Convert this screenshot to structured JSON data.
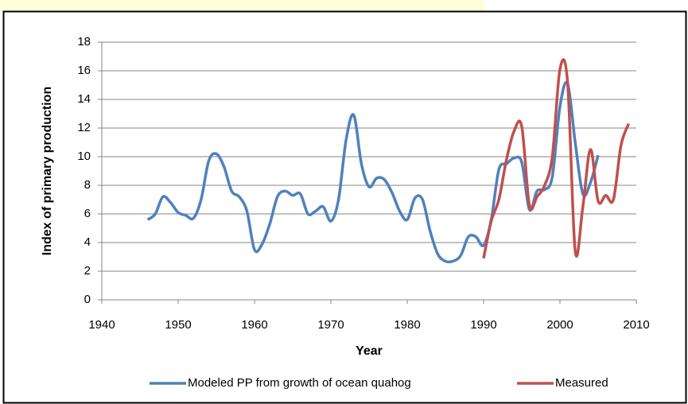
{
  "chart_data": {
    "type": "line",
    "xlabel": "Year",
    "ylabel": "Index of primary production",
    "x": [
      1946,
      1947,
      1948,
      1949,
      1950,
      1951,
      1952,
      1953,
      1954,
      1955,
      1956,
      1957,
      1958,
      1959,
      1960,
      1961,
      1962,
      1963,
      1964,
      1965,
      1966,
      1967,
      1968,
      1969,
      1970,
      1971,
      1972,
      1973,
      1974,
      1975,
      1976,
      1977,
      1978,
      1979,
      1980,
      1981,
      1982,
      1983,
      1984,
      1985,
      1986,
      1987,
      1988,
      1989,
      1990,
      1991,
      1992,
      1993,
      1994,
      1995,
      1996,
      1997,
      1998,
      1999,
      2000,
      2001,
      2002,
      2003,
      2004,
      2005,
      2006,
      2007,
      2008,
      2009
    ],
    "series": [
      {
        "name": "Modeled PP from growth of ocean quahog",
        "color": "#4f81bd",
        "values": [
          5.6,
          6.0,
          7.2,
          6.8,
          6.1,
          5.9,
          5.7,
          7.0,
          9.7,
          10.2,
          9.3,
          7.6,
          7.2,
          6.2,
          3.5,
          3.9,
          5.3,
          7.2,
          7.6,
          7.3,
          7.4,
          6.0,
          6.2,
          6.5,
          5.5,
          7.0,
          11.2,
          12.9,
          9.5,
          7.9,
          8.5,
          8.4,
          7.5,
          6.2,
          5.6,
          7.1,
          7.0,
          4.8,
          3.2,
          2.7,
          2.7,
          3.1,
          4.4,
          4.4,
          3.8,
          5.6,
          9.1,
          9.5,
          9.9,
          9.6,
          6.3,
          7.6,
          7.7,
          8.6,
          13.5,
          15.1,
          11.0,
          7.4,
          8.2,
          10.1,
          null,
          null,
          null,
          null
        ]
      },
      {
        "name": "Measured",
        "color": "#c0504d",
        "values": [
          null,
          null,
          null,
          null,
          null,
          null,
          null,
          null,
          null,
          null,
          null,
          null,
          null,
          null,
          null,
          null,
          null,
          null,
          null,
          null,
          null,
          null,
          null,
          null,
          null,
          null,
          null,
          null,
          null,
          null,
          null,
          null,
          null,
          null,
          null,
          null,
          null,
          null,
          null,
          null,
          null,
          null,
          null,
          null,
          2.9,
          5.5,
          7.0,
          9.8,
          11.8,
          12.1,
          6.6,
          7.2,
          8.0,
          10.0,
          16.1,
          15.2,
          3.4,
          6.5,
          10.5,
          6.9,
          7.3,
          7.0,
          10.8,
          12.3
        ]
      }
    ],
    "xlim": [
      1940,
      2010
    ],
    "xticks": [
      1940,
      1950,
      1960,
      1970,
      1980,
      1990,
      2000,
      2010
    ],
    "ylim": [
      0,
      18
    ],
    "yticks": [
      0,
      2,
      4,
      6,
      8,
      10,
      12,
      14,
      16,
      18
    ],
    "grid": true,
    "legend": "bottom"
  }
}
